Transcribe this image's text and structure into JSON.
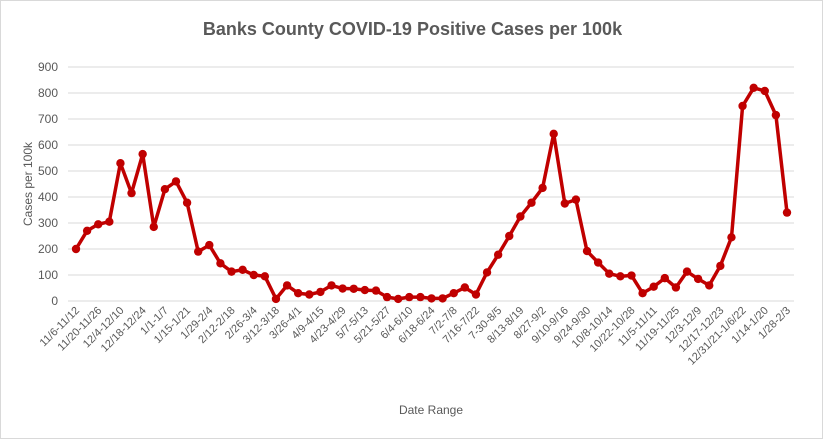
{
  "chart_data": {
    "type": "line",
    "title": "Banks County COVID-19 Positive Cases per 100k",
    "xlabel": "Date Range",
    "ylabel": "Cases per 100k",
    "ylim": [
      0,
      900
    ],
    "yticks": [
      0,
      100,
      200,
      300,
      400,
      500,
      600,
      700,
      800,
      900
    ],
    "grid": true,
    "legend": "none",
    "color": "#c00000",
    "x_tick_labels": [
      "11/6-11/12",
      "11/20-11/26",
      "12/4-12/10",
      "12/18-12/24",
      "1/1-1/7",
      "1/15-1/21",
      "1/29-2/4",
      "2/12-2/18",
      "2/26-3/4",
      "3/12-3/18",
      "3/26-4/1",
      "4/9-4/15",
      "4/23-4/29",
      "5/7-5/13",
      "5/21-5/27",
      "6/4-6/10",
      "6/18-6/24",
      "7/2-7/8",
      "7/16-7/22",
      "7-30-8/5",
      "8/13-8/19",
      "8/27-9/2",
      "9/10-9/16",
      "9/24-9/30",
      "10/8-10/14",
      "10/22-10/28",
      "11/5-11/11",
      "11/19-11/25",
      "12/3-12/9",
      "12/17-12/23",
      "12/31/21-1/6/22",
      "1/14-1/20",
      "1/28-2/3"
    ],
    "values": [
      200,
      270,
      295,
      305,
      530,
      415,
      565,
      285,
      430,
      460,
      378,
      190,
      215,
      145,
      113,
      120,
      100,
      95,
      8,
      60,
      30,
      25,
      35,
      60,
      48,
      47,
      42,
      40,
      15,
      8,
      15,
      15,
      10,
      10,
      30,
      52,
      25,
      110,
      178,
      250,
      325,
      378,
      435,
      643,
      375,
      390,
      192,
      148,
      105,
      95,
      98,
      30,
      55,
      88,
      52,
      113,
      85,
      60,
      135,
      245,
      750,
      820,
      808,
      715,
      340
    ]
  }
}
